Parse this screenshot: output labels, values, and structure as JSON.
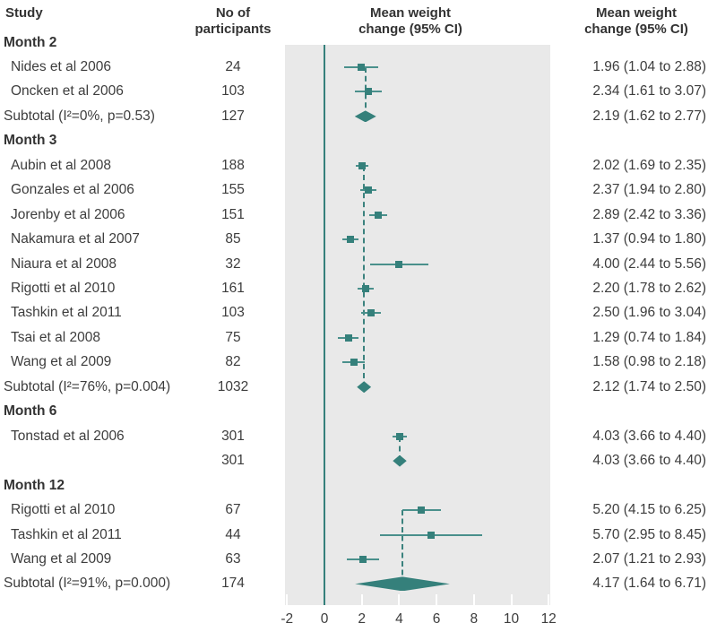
{
  "header": {
    "study": "Study",
    "participants_line1": "No of",
    "participants_line2": "participants",
    "plot_title_line1": "Mean weight",
    "plot_title_line2": "change (95% CI)",
    "values_title_line1": "Mean weight",
    "values_title_line2": "change (95% CI)"
  },
  "colors": {
    "accent": "#35807B",
    "ci_line": "#4A908C",
    "dashed_line": "#3B827E",
    "plot_bg": "#E9E9E9",
    "tick": "#FFFFFF",
    "text": "#3D3D3D",
    "header_text": "#333333"
  },
  "chart_data": {
    "type": "forest",
    "x_axis": {
      "ticks": [
        -2,
        0,
        2,
        4,
        6,
        8,
        10,
        12
      ],
      "zero_ref_line": 0,
      "range": [
        -2.1,
        12.1
      ]
    },
    "columns": [
      "Study",
      "No of participants",
      "Mean weight change (95% CI)",
      "Mean weight change (95% CI)"
    ],
    "rows": [
      {
        "type": "group",
        "label": "Month 2"
      },
      {
        "type": "study",
        "label": "Nides et al 2006",
        "n": "24",
        "est": 1.96,
        "lo": 1.04,
        "hi": 2.88,
        "text": "1.96 (1.04 to 2.88)"
      },
      {
        "type": "study",
        "label": "Oncken et al 2006",
        "n": "103",
        "est": 2.34,
        "lo": 1.61,
        "hi": 3.07,
        "text": "2.34 (1.61 to 3.07)"
      },
      {
        "type": "subtotal",
        "label": "Subtotal (I²=0%, p=0.53)",
        "n": "127",
        "est": 2.19,
        "lo": 1.62,
        "hi": 2.77,
        "text": "2.19 (1.62 to 2.77)"
      },
      {
        "type": "group",
        "label": "Month 3"
      },
      {
        "type": "study",
        "label": "Aubin et al 2008",
        "n": "188",
        "est": 2.02,
        "lo": 1.69,
        "hi": 2.35,
        "text": "2.02 (1.69 to 2.35)"
      },
      {
        "type": "study",
        "label": "Gonzales et al 2006",
        "n": "155",
        "est": 2.37,
        "lo": 1.94,
        "hi": 2.8,
        "text": "2.37 (1.94 to 2.80)"
      },
      {
        "type": "study",
        "label": "Jorenby et al 2006",
        "n": "151",
        "est": 2.89,
        "lo": 2.42,
        "hi": 3.36,
        "text": "2.89 (2.42 to 3.36)"
      },
      {
        "type": "study",
        "label": "Nakamura et al 2007",
        "n": "85",
        "est": 1.37,
        "lo": 0.94,
        "hi": 1.8,
        "text": "1.37 (0.94 to 1.80)"
      },
      {
        "type": "study",
        "label": "Niaura et al 2008",
        "n": "32",
        "est": 4.0,
        "lo": 2.44,
        "hi": 5.56,
        "text": "4.00 (2.44 to 5.56)"
      },
      {
        "type": "study",
        "label": "Rigotti et al 2010",
        "n": "161",
        "est": 2.2,
        "lo": 1.78,
        "hi": 2.62,
        "text": "2.20 (1.78 to 2.62)"
      },
      {
        "type": "study",
        "label": "Tashkin et al 2011",
        "n": "103",
        "est": 2.5,
        "lo": 1.96,
        "hi": 3.04,
        "text": "2.50 (1.96 to 3.04)"
      },
      {
        "type": "study",
        "label": "Tsai et al 2008",
        "n": "75",
        "est": 1.29,
        "lo": 0.74,
        "hi": 1.84,
        "text": "1.29 (0.74 to 1.84)"
      },
      {
        "type": "study",
        "label": "Wang et al 2009",
        "n": "82",
        "est": 1.58,
        "lo": 0.98,
        "hi": 2.18,
        "text": "1.58 (0.98 to 2.18)"
      },
      {
        "type": "subtotal",
        "label": "Subtotal (I²=76%, p=0.004)",
        "n": "1032",
        "est": 2.12,
        "lo": 1.74,
        "hi": 2.5,
        "text": "2.12 (1.74 to 2.50)"
      },
      {
        "type": "group",
        "label": "Month 6"
      },
      {
        "type": "study",
        "label": "Tonstad et al 2006",
        "n": "301",
        "est": 4.03,
        "lo": 3.66,
        "hi": 4.4,
        "text": "4.03 (3.66 to 4.40)"
      },
      {
        "type": "subtotal",
        "label": "",
        "n": "301",
        "est": 4.03,
        "lo": 3.66,
        "hi": 4.4,
        "text": "4.03 (3.66 to 4.40)"
      },
      {
        "type": "group",
        "label": "Month 12"
      },
      {
        "type": "study",
        "label": "Rigotti et al 2010",
        "n": "67",
        "est": 5.2,
        "lo": 4.15,
        "hi": 6.25,
        "text": "5.20 (4.15 to 6.25)"
      },
      {
        "type": "study",
        "label": "Tashkin et al 2011",
        "n": "44",
        "est": 5.7,
        "lo": 2.95,
        "hi": 8.45,
        "text": "5.70 (2.95 to 8.45)"
      },
      {
        "type": "study",
        "label": "Wang et al 2009",
        "n": "63",
        "est": 2.07,
        "lo": 1.21,
        "hi": 2.93,
        "text": "2.07 (1.21 to 2.93)"
      },
      {
        "type": "subtotal",
        "label": "Subtotal (I²=91%, p=0.000)",
        "n": "174",
        "est": 4.17,
        "lo": 1.64,
        "hi": 6.71,
        "text": "4.17 (1.64 to 6.71)"
      }
    ]
  }
}
